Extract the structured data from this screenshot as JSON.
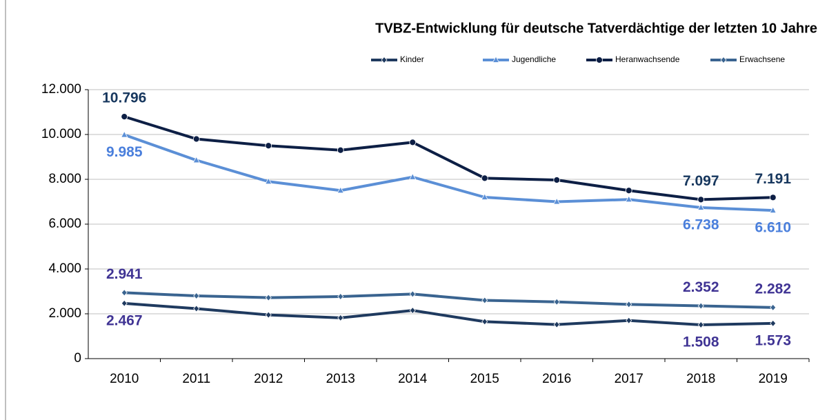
{
  "chart_data": {
    "type": "line",
    "title": "TVBZ-Entwicklung für deutsche Tatverdächtige der letzten 10 Jahre",
    "categories": [
      "2010",
      "2011",
      "2012",
      "2013",
      "2014",
      "2015",
      "2016",
      "2017",
      "2018",
      "2019"
    ],
    "series": [
      {
        "name": "Kinder",
        "color": "#1f3a5f",
        "label_color": "#403494",
        "marker": "diamond",
        "values": [
          2467,
          2230,
          1950,
          1820,
          2150,
          1650,
          1520,
          1700,
          1508,
          1573
        ],
        "value_labels": [
          "2.467",
          null,
          null,
          null,
          null,
          null,
          null,
          null,
          "1.508",
          "1.573"
        ]
      },
      {
        "name": "Jugendliche",
        "color": "#5b8fd6",
        "label_color": "#4a7fdc",
        "marker": "triangle",
        "values": [
          9985,
          8850,
          7900,
          7500,
          8100,
          7200,
          7000,
          7100,
          6738,
          6610
        ],
        "value_labels": [
          "9.985",
          null,
          null,
          null,
          null,
          null,
          null,
          null,
          "6.738",
          "6.610"
        ]
      },
      {
        "name": "Heranwachsende",
        "color": "#0d1f45",
        "label_color": "#17375e",
        "marker": "circle",
        "values": [
          10796,
          9800,
          9500,
          9300,
          9650,
          8050,
          7970,
          7500,
          7097,
          7191
        ],
        "value_labels": [
          "10.796",
          null,
          null,
          null,
          null,
          null,
          null,
          null,
          "7.097",
          "7.191"
        ]
      },
      {
        "name": "Erwachsene",
        "color": "#3a6490",
        "label_color": "#403494",
        "marker": "diamond",
        "values": [
          2941,
          2800,
          2720,
          2770,
          2880,
          2600,
          2530,
          2420,
          2352,
          2282
        ],
        "value_labels": [
          "2.941",
          null,
          null,
          null,
          null,
          null,
          null,
          null,
          "2.352",
          "2.282"
        ]
      }
    ],
    "ylim": [
      0,
      12000
    ],
    "yticks": [
      0,
      {
        "value": 2000,
        "label": "2.000"
      },
      {
        "value": 4000,
        "label": "4.000"
      },
      {
        "value": 6000,
        "label": "6.000"
      },
      {
        "value": 8000,
        "label": "8.000"
      },
      {
        "value": 10000,
        "label": "10.000"
      },
      {
        "value": 12000,
        "label": "12.000"
      }
    ],
    "grid": true,
    "legend": "top-right"
  }
}
